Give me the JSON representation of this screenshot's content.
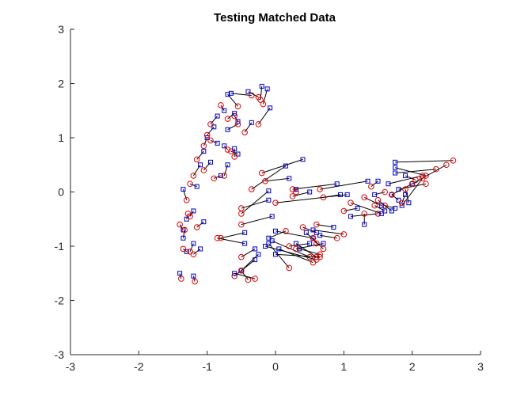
{
  "chart_data": {
    "type": "scatter",
    "title": "Testing Matched Data",
    "xlabel": "",
    "ylabel": "",
    "xlim": [
      -3,
      3
    ],
    "ylim": [
      -3,
      3
    ],
    "xticks": [
      "-3",
      "-2",
      "-1",
      "0",
      "1",
      "2",
      "3"
    ],
    "yticks": [
      "-3",
      "-2",
      "-1",
      "0",
      "1",
      "2",
      "3"
    ],
    "grid": false,
    "colors": {
      "squares": "#0000cc",
      "circles": "#e00000",
      "links": "#000000",
      "axes": "#262626"
    },
    "pairs": [
      [
        -1.35,
        0.05,
        -1.3,
        -0.15
      ],
      [
        -1.3,
        -0.5,
        -1.28,
        -0.4
      ],
      [
        -1.35,
        -0.7,
        -1.4,
        -0.6
      ],
      [
        -1.35,
        -0.85,
        -1.33,
        -0.7
      ],
      [
        -1.3,
        -1.1,
        -1.35,
        -1.05
      ],
      [
        -1.4,
        -1.5,
        -1.38,
        -1.6
      ],
      [
        -1.2,
        -1.55,
        -1.18,
        -1.65
      ],
      [
        -1.2,
        -0.95,
        -1.25,
        -1.1
      ],
      [
        -1.1,
        -1.05,
        -1.2,
        -1.15
      ],
      [
        -1.05,
        -0.55,
        -1.15,
        -0.65
      ],
      [
        -1.2,
        -0.35,
        -1.25,
        -0.45
      ],
      [
        -1.15,
        0.1,
        -1.25,
        0.15
      ],
      [
        -1.1,
        0.5,
        -1.2,
        0.3
      ],
      [
        -1.05,
        0.75,
        -1.15,
        0.6
      ],
      [
        -1.0,
        1.0,
        -1.05,
        0.85
      ],
      [
        -0.95,
        0.55,
        -1.05,
        0.4
      ],
      [
        -0.85,
        0.9,
        -0.95,
        0.95
      ],
      [
        -0.8,
        0.3,
        -0.9,
        0.25
      ],
      [
        -0.7,
        0.5,
        -0.75,
        0.3
      ],
      [
        -0.55,
        0.7,
        -0.65,
        0.75
      ],
      [
        -0.55,
        1.3,
        -0.6,
        1.4
      ],
      [
        -0.6,
        1.45,
        -0.7,
        1.35
      ],
      [
        -0.75,
        1.5,
        -0.8,
        1.6
      ],
      [
        -0.85,
        1.4,
        -0.95,
        1.25
      ],
      [
        -0.9,
        1.2,
        -1.0,
        1.05
      ],
      [
        -0.7,
        1.8,
        -0.55,
        1.58
      ],
      [
        -0.65,
        1.82,
        -0.35,
        1.78
      ],
      [
        -0.4,
        1.85,
        -0.25,
        1.75
      ],
      [
        -0.2,
        1.95,
        -0.22,
        1.7
      ],
      [
        -0.12,
        1.9,
        -0.18,
        1.62
      ],
      [
        -0.08,
        1.55,
        -0.25,
        1.25
      ],
      [
        -0.35,
        1.28,
        -0.45,
        1.1
      ],
      [
        -0.7,
        1.15,
        -0.55,
        1.25
      ],
      [
        -0.75,
        0.85,
        -0.7,
        0.78
      ],
      [
        -0.6,
        0.8,
        -0.6,
        0.65
      ],
      [
        0.4,
        0.6,
        -0.2,
        0.35
      ],
      [
        0.15,
        0.48,
        -0.35,
        0.05
      ],
      [
        0.2,
        0.25,
        -0.15,
        0.2
      ],
      [
        0.9,
        0.15,
        0.25,
        0.05
      ],
      [
        -0.1,
        0.02,
        -0.5,
        -0.4
      ],
      [
        -0.1,
        -0.15,
        -0.5,
        -0.3
      ],
      [
        -0.05,
        -0.45,
        -0.5,
        -0.6
      ],
      [
        -0.45,
        -0.75,
        -0.8,
        -0.85
      ],
      [
        -0.3,
        -1.05,
        -0.5,
        -1.2
      ],
      [
        -0.45,
        -0.95,
        -0.85,
        -0.85
      ],
      [
        -0.3,
        -1.25,
        -0.6,
        -1.55
      ],
      [
        -0.5,
        -1.45,
        -0.4,
        -1.62
      ],
      [
        -0.6,
        -1.5,
        -0.3,
        -1.6
      ],
      [
        -0.25,
        -1.15,
        -0.5,
        -1.45
      ],
      [
        -0.1,
        -0.95,
        0.2,
        -1.4
      ],
      [
        -0.05,
        -0.9,
        0.5,
        -1.2
      ],
      [
        -0.15,
        -1.0,
        0.6,
        -1.25
      ],
      [
        0.05,
        -1.05,
        0.55,
        -1.3
      ],
      [
        0.3,
        -0.95,
        0.6,
        -1.2
      ],
      [
        0.35,
        -1.05,
        0.65,
        -1.15
      ],
      [
        0.45,
        -0.75,
        0.7,
        -1.05
      ],
      [
        0.55,
        -0.85,
        0.6,
        -0.95
      ],
      [
        0.6,
        -0.75,
        0.4,
        -0.65
      ],
      [
        0.65,
        -0.8,
        0.9,
        -0.85
      ],
      [
        0.55,
        -0.7,
        1.0,
        -0.78
      ],
      [
        0.85,
        -0.65,
        0.6,
        -0.6
      ],
      [
        0.7,
        -0.95,
        0.3,
        -1.05
      ],
      [
        -0.1,
        -0.85,
        0.15,
        -0.72
      ],
      [
        0.0,
        -0.72,
        0.55,
        -0.85
      ],
      [
        0.5,
        -0.95,
        0.2,
        -1.0
      ],
      [
        0.0,
        -1.15,
        0.65,
        -1.2
      ],
      [
        0.3,
        0.05,
        0.3,
        0.0
      ],
      [
        0.5,
        0.0,
        0.25,
        -0.08
      ],
      [
        0.95,
        -0.05,
        0.7,
        -0.1
      ],
      [
        1.05,
        -0.05,
        0.0,
        -0.2
      ],
      [
        1.35,
        0.2,
        0.65,
        0.05
      ],
      [
        1.5,
        0.2,
        1.4,
        0.1
      ],
      [
        1.75,
        0.45,
        2.2,
        0.3
      ],
      [
        1.75,
        0.35,
        2.35,
        0.42
      ],
      [
        1.9,
        0.3,
        2.05,
        0.22
      ],
      [
        2.0,
        0.15,
        2.5,
        0.5
      ],
      [
        1.75,
        0.55,
        2.6,
        0.58
      ],
      [
        1.8,
        0.05,
        2.2,
        0.15
      ],
      [
        1.7,
        -0.05,
        2.0,
        0.15
      ],
      [
        1.65,
        0.15,
        2.15,
        0.3
      ],
      [
        1.8,
        -0.15,
        1.7,
        -0.05
      ],
      [
        1.75,
        -0.3,
        1.6,
        -0.25
      ],
      [
        1.6,
        -0.35,
        1.45,
        -0.25
      ],
      [
        1.55,
        -0.25,
        1.3,
        -0.1
      ],
      [
        1.45,
        -0.05,
        1.6,
        0.0
      ],
      [
        1.95,
        -0.2,
        1.9,
        0.05
      ],
      [
        1.85,
        -0.25,
        2.15,
        0.25
      ],
      [
        1.9,
        -0.05,
        1.85,
        -0.2
      ],
      [
        1.1,
        -0.45,
        1.5,
        -0.4
      ],
      [
        1.3,
        -0.6,
        1.3,
        -0.4
      ],
      [
        1.55,
        -0.4,
        1.1,
        -0.2
      ],
      [
        1.7,
        -0.35,
        1.5,
        -0.15
      ],
      [
        1.2,
        -0.3,
        1.0,
        -0.35
      ]
    ]
  }
}
